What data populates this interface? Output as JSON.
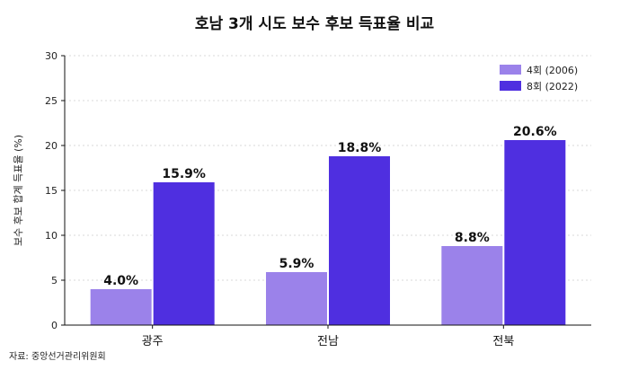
{
  "chart_data": {
    "type": "bar",
    "title": "호남 3개 시도 보수 후보 득표율 비교",
    "ylabel": "보수 후보 합계 득표율 (%)",
    "xlabel": "",
    "ylim": [
      0,
      30
    ],
    "yticks": [
      0,
      5,
      10,
      15,
      20,
      25,
      30
    ],
    "grid": true,
    "legend_position": "top-right",
    "categories": [
      "광주",
      "전남",
      "전북"
    ],
    "series": [
      {
        "name": "4회 (2006)",
        "values": [
          4.0,
          5.9,
          8.8
        ],
        "labels": [
          "4.0%",
          "5.9%",
          "8.8%"
        ],
        "color": "#9b82ea"
      },
      {
        "name": "8회 (2022)",
        "values": [
          15.9,
          18.8,
          20.6
        ],
        "labels": [
          "15.9%",
          "18.8%",
          "20.6%"
        ],
        "color": "#4f2fe0"
      }
    ],
    "source": "자료: 중앙선거관리위원회"
  }
}
